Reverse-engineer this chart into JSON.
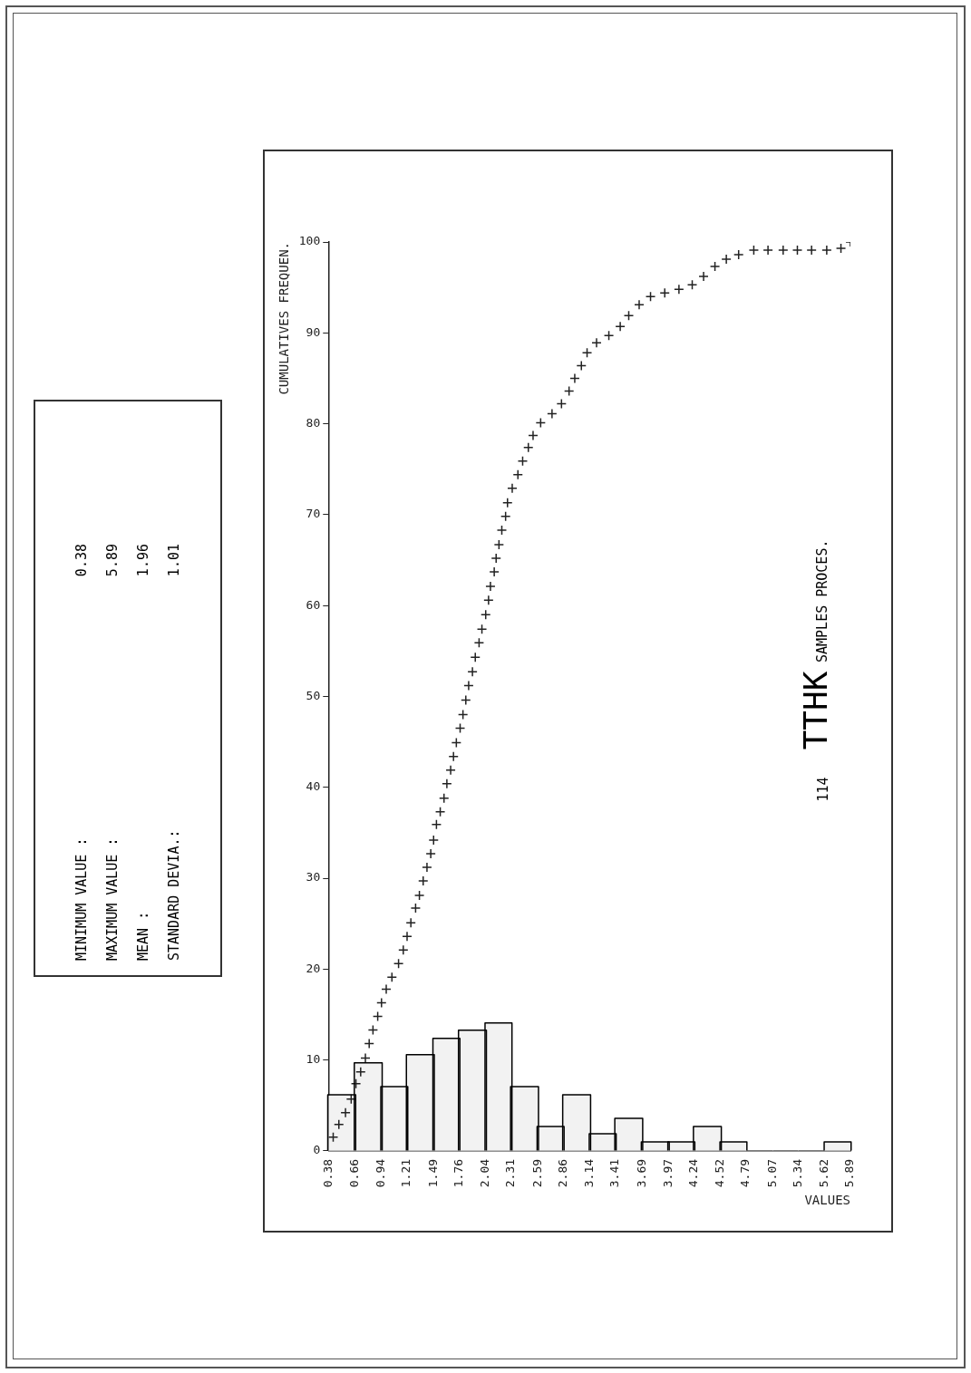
{
  "chart_data": {
    "type": "histogram",
    "title": "TTHK",
    "subtitle": "SAMPLES PROCES.",
    "xlabel": "VALUES",
    "ylabel": "CUMULATIVES FREQUEN.",
    "annotations": [
      "114",
      "MINIMUM VALUE :",
      "0.38",
      "MAXIMUM VALUE :",
      "5.89",
      "MEAN :",
      "1.96",
      "STANDARD DEVIA.:",
      "1.01"
    ],
    "series": [
      {
        "type": "histogram",
        "color": "#f2f2f2",
        "bins": [
          0.38,
          0.66,
          0.94,
          1.21,
          1.49,
          1.76,
          2.04,
          2.31,
          2.59,
          2.86,
          3.14,
          3.41,
          3.69,
          3.97,
          4.24,
          4.52,
          4.79,
          5.07,
          5.34,
          5.62,
          5.89
        ],
        "values": [
          6.1,
          9.6,
          7.0,
          10.5,
          12.3,
          13.2,
          14.0,
          7.0,
          2.6,
          6.1,
          1.8,
          3.5,
          0.9,
          0.9,
          2.6,
          0.9,
          0,
          0,
          0,
          0.9
        ]
      },
      {
        "type": "scatter",
        "color": "#222222",
        "x": [
          0.43,
          0.49,
          0.56,
          0.62,
          0.67,
          0.72,
          0.77,
          0.81,
          0.85,
          0.9,
          0.94,
          0.99,
          1.05,
          1.12,
          1.17,
          1.21,
          1.25,
          1.3,
          1.34,
          1.38,
          1.42,
          1.46,
          1.49,
          1.52,
          1.56,
          1.6,
          1.63,
          1.67,
          1.7,
          1.73,
          1.77,
          1.8,
          1.83,
          1.86,
          1.9,
          1.93,
          1.97,
          2.0,
          2.04,
          2.07,
          2.09,
          2.13,
          2.15,
          2.18,
          2.21,
          2.25,
          2.27,
          2.32,
          2.38,
          2.43,
          2.49,
          2.54,
          2.62,
          2.74,
          2.84,
          2.92,
          2.98,
          3.05,
          3.11,
          3.21,
          3.34,
          3.46,
          3.55,
          3.66,
          3.78,
          3.93,
          4.08,
          4.22,
          4.34,
          4.46,
          4.58,
          4.71,
          4.87,
          5.02,
          5.18,
          5.33,
          5.48,
          5.64,
          5.79,
          5.89
        ],
        "values": [
          1.5,
          2.9,
          4.2,
          5.7,
          7.4,
          8.7,
          10.2,
          11.8,
          13.3,
          14.8,
          16.3,
          17.8,
          19.1,
          20.6,
          22.1,
          23.6,
          25.1,
          26.7,
          28.1,
          29.7,
          31.2,
          32.7,
          34.2,
          35.9,
          37.3,
          38.8,
          40.4,
          41.9,
          43.4,
          44.9,
          46.5,
          48.0,
          49.6,
          51.2,
          52.7,
          54.3,
          55.9,
          57.4,
          59.0,
          60.6,
          62.1,
          63.7,
          65.2,
          66.7,
          68.3,
          69.8,
          71.3,
          72.9,
          74.4,
          75.9,
          77.4,
          78.7,
          80.1,
          81.1,
          82.2,
          83.6,
          85.0,
          86.4,
          87.8,
          88.9,
          89.7,
          90.7,
          91.9,
          93.1,
          94.0,
          94.4,
          94.8,
          95.3,
          96.2,
          97.3,
          98.1,
          98.6,
          99.1,
          99.1,
          99.1,
          99.1,
          99.1,
          99.1,
          99.3,
          100
        ]
      }
    ],
    "xlim": [
      0.38,
      5.89
    ],
    "xticks": [
      0.38,
      0.66,
      0.94,
      1.21,
      1.49,
      1.76,
      2.04,
      2.31,
      2.59,
      2.86,
      3.14,
      3.41,
      3.69,
      3.97,
      4.24,
      4.52,
      4.79,
      5.07,
      5.34,
      5.62,
      5.89
    ],
    "ylim": [
      0,
      100
    ],
    "yticks": [
      0,
      10,
      20,
      30,
      40,
      50,
      60,
      70,
      80,
      90,
      100
    ],
    "grid": false,
    "legend": false,
    "marker": "cross"
  }
}
